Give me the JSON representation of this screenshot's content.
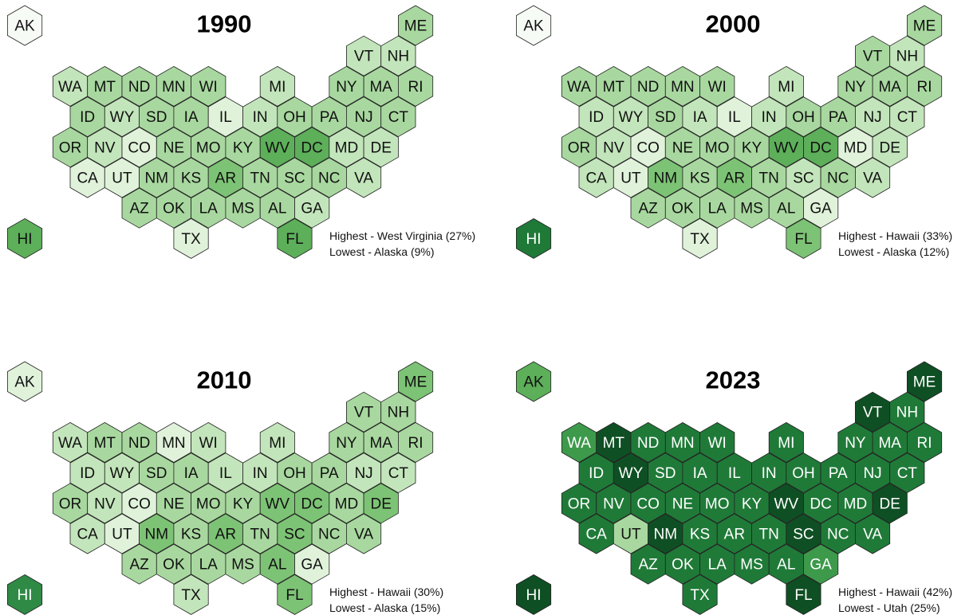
{
  "panels": [
    {
      "title": "1990",
      "notes": [
        "Highest - West Virginia (27%)",
        "Lowest - Alaska (9%)"
      ],
      "labels": [
        "AK",
        "ME",
        "VT",
        "NH",
        "WA",
        "MT",
        "ND",
        "MN",
        "WI",
        "MI",
        "NY",
        "MA",
        "RI",
        "ID",
        "WY",
        "SD",
        "IA",
        "IL",
        "IN",
        "OH",
        "PA",
        "NJ",
        "CT",
        "OR",
        "NV",
        "CO",
        "NE",
        "MO",
        "KY",
        "WV",
        "DC",
        "MD",
        "DE",
        "CA",
        "UT",
        "NM",
        "KS",
        "AR",
        "TN",
        "SC",
        "NC",
        "VA",
        "AZ",
        "OK",
        "LA",
        "MS",
        "AL",
        "GA",
        "TX",
        "FL",
        "HI"
      ],
      "colors": [
        "#f7fbf5",
        "#a8d89f",
        "#c3e5bb",
        "#c3e5bb",
        "#c3e5bb",
        "#a8d89f",
        "#a8d89f",
        "#a8d89f",
        "#a8d89f",
        "#c3e5bb",
        "#a8d89f",
        "#a8d89f",
        "#a8d89f",
        "#a8d89f",
        "#c3e5bb",
        "#a8d89f",
        "#a8d89f",
        "#e0f2da",
        "#c3e5bb",
        "#a8d89f",
        "#a8d89f",
        "#a8d89f",
        "#a8d89f",
        "#a8d89f",
        "#c3e5bb",
        "#e0f2da",
        "#a8d89f",
        "#a8d89f",
        "#a8d89f",
        "#5daf5a",
        "#5daf5a",
        "#c3e5bb",
        "#c3e5bb",
        "#e0f2da",
        "#e0f2da",
        "#a8d89f",
        "#a8d89f",
        "#7dc375",
        "#a8d89f",
        "#a8d89f",
        "#a8d89f",
        "#c3e5bb",
        "#a8d89f",
        "#a8d89f",
        "#a8d89f",
        "#a8d89f",
        "#a8d89f",
        "#c3e5bb",
        "#e0f2da",
        "#5daf5a",
        "#5daf5a"
      ]
    },
    {
      "title": "2000",
      "notes": [
        "Highest - Hawaii (33%)",
        "Lowest - Alaska (12%)"
      ],
      "labels": [
        "AK",
        "ME",
        "VT",
        "NH",
        "WA",
        "MT",
        "ND",
        "MN",
        "WI",
        "MI",
        "NY",
        "MA",
        "RI",
        "ID",
        "WY",
        "SD",
        "IA",
        "IL",
        "IN",
        "OH",
        "PA",
        "NJ",
        "CT",
        "OR",
        "NV",
        "CO",
        "NE",
        "MO",
        "KY",
        "WV",
        "DC",
        "MD",
        "DE",
        "CA",
        "UT",
        "NM",
        "KS",
        "AR",
        "TN",
        "SC",
        "NC",
        "VA",
        "AZ",
        "OK",
        "LA",
        "MS",
        "AL",
        "GA",
        "TX",
        "FL",
        "HI"
      ],
      "colors": [
        "#f7fbf5",
        "#a8d89f",
        "#a8d89f",
        "#c3e5bb",
        "#a8d89f",
        "#a8d89f",
        "#a8d89f",
        "#a8d89f",
        "#a8d89f",
        "#c3e5bb",
        "#a8d89f",
        "#a8d89f",
        "#a8d89f",
        "#c3e5bb",
        "#c3e5bb",
        "#a8d89f",
        "#c3e5bb",
        "#e0f2da",
        "#c3e5bb",
        "#a8d89f",
        "#a8d89f",
        "#c3e5bb",
        "#c3e5bb",
        "#a8d89f",
        "#c3e5bb",
        "#e0f2da",
        "#a8d89f",
        "#a8d89f",
        "#a8d89f",
        "#5daf5a",
        "#5daf5a",
        "#e0f2da",
        "#c3e5bb",
        "#c3e5bb",
        "#e0f2da",
        "#7dc375",
        "#a8d89f",
        "#7dc375",
        "#a8d89f",
        "#c3e5bb",
        "#a8d89f",
        "#c3e5bb",
        "#a8d89f",
        "#a8d89f",
        "#a8d89f",
        "#a8d89f",
        "#a8d89f",
        "#e0f2da",
        "#e0f2da",
        "#7dc375",
        "#1f7a38"
      ]
    },
    {
      "title": "2010",
      "notes": [
        "Highest - Hawaii (30%)",
        "Lowest - Alaska (15%)"
      ],
      "labels": [
        "AK",
        "ME",
        "VT",
        "NH",
        "WA",
        "MT",
        "ND",
        "MN",
        "WI",
        "MI",
        "NY",
        "MA",
        "RI",
        "ID",
        "WY",
        "SD",
        "IA",
        "IL",
        "IN",
        "OH",
        "PA",
        "NJ",
        "CT",
        "OR",
        "NV",
        "CO",
        "NE",
        "MO",
        "KY",
        "WV",
        "DC",
        "MD",
        "DE",
        "CA",
        "UT",
        "NM",
        "KS",
        "AR",
        "TN",
        "SC",
        "NC",
        "VA",
        "AZ",
        "OK",
        "LA",
        "MS",
        "AL",
        "GA",
        "TX",
        "FL",
        "HI"
      ],
      "colors": [
        "#e0f2da",
        "#7dc375",
        "#a8d89f",
        "#a8d89f",
        "#c3e5bb",
        "#a8d89f",
        "#a8d89f",
        "#e0f2da",
        "#c3e5bb",
        "#c3e5bb",
        "#a8d89f",
        "#a8d89f",
        "#a8d89f",
        "#c3e5bb",
        "#c3e5bb",
        "#a8d89f",
        "#a8d89f",
        "#c3e5bb",
        "#c3e5bb",
        "#a8d89f",
        "#a8d89f",
        "#c3e5bb",
        "#c3e5bb",
        "#a8d89f",
        "#c3e5bb",
        "#e0f2da",
        "#a8d89f",
        "#a8d89f",
        "#a8d89f",
        "#7dc375",
        "#7dc375",
        "#a8d89f",
        "#7dc375",
        "#c3e5bb",
        "#e0f2da",
        "#7dc375",
        "#a8d89f",
        "#7dc375",
        "#a8d89f",
        "#7dc375",
        "#a8d89f",
        "#a8d89f",
        "#a8d89f",
        "#a8d89f",
        "#a8d89f",
        "#a8d89f",
        "#7dc375",
        "#e0f2da",
        "#c3e5bb",
        "#7dc375",
        "#2f8a45"
      ]
    },
    {
      "title": "2023",
      "notes": [
        "Highest - Hawaii (42%)",
        "Lowest - Utah (25%)"
      ],
      "labels": [
        "AK",
        "ME",
        "VT",
        "NH",
        "WA",
        "MT",
        "ND",
        "MN",
        "WI",
        "MI",
        "NY",
        "MA",
        "RI",
        "ID",
        "WY",
        "SD",
        "IA",
        "IL",
        "IN",
        "OH",
        "PA",
        "NJ",
        "CT",
        "OR",
        "NV",
        "CO",
        "NE",
        "MO",
        "KY",
        "WV",
        "DC",
        "MD",
        "DE",
        "CA",
        "UT",
        "NM",
        "KS",
        "AR",
        "TN",
        "SC",
        "NC",
        "VA",
        "AZ",
        "OK",
        "LA",
        "MS",
        "AL",
        "GA",
        "TX",
        "FL",
        "HI"
      ],
      "colors": [
        "#5daf5a",
        "#0f4f24",
        "#0f4f24",
        "#1f7a38",
        "#3d9a4b",
        "#0f4f24",
        "#1f7a38",
        "#1f7a38",
        "#1f7a38",
        "#1f7a38",
        "#1f7a38",
        "#1f7a38",
        "#1f7a38",
        "#1f7a38",
        "#0f4f24",
        "#1f7a38",
        "#1f7a38",
        "#1f7a38",
        "#1f7a38",
        "#1f7a38",
        "#1f7a38",
        "#1f7a38",
        "#1f7a38",
        "#1f7a38",
        "#1f7a38",
        "#1f7a38",
        "#1f7a38",
        "#1f7a38",
        "#1f7a38",
        "#0f4f24",
        "#1f7a38",
        "#1f7a38",
        "#0f4f24",
        "#1f7a38",
        "#a8d89f",
        "#0f4f24",
        "#1f7a38",
        "#1f7a38",
        "#1f7a38",
        "#0f4f24",
        "#1f7a38",
        "#1f7a38",
        "#1f7a38",
        "#1f7a38",
        "#1f7a38",
        "#1f7a38",
        "#1f7a38",
        "#3d9a4b",
        "#1f7a38",
        "#0f4f24",
        "#0f4f24"
      ]
    }
  ]
}
